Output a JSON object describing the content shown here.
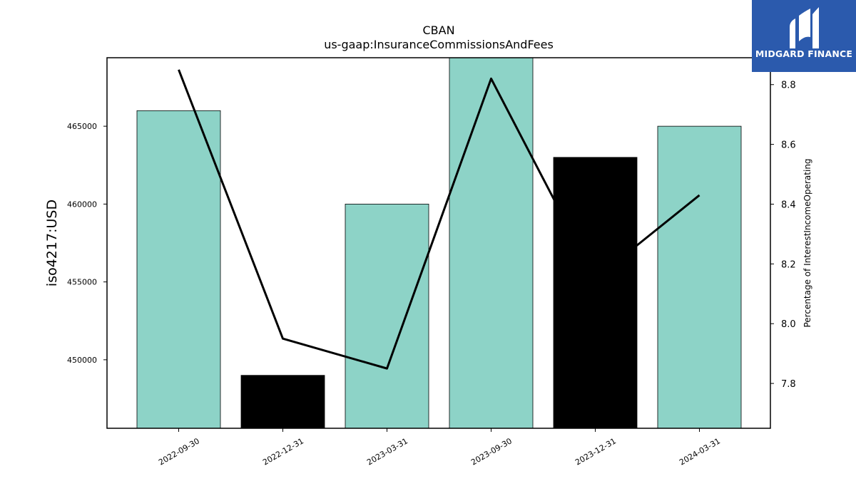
{
  "chart_data": {
    "type": "bar",
    "title": "CBAN",
    "subtitle": "us-gaap:InsuranceCommissionsAndFees",
    "ylabel": "iso4217:USD",
    "y2label": "Percentage of InterestIncomeOperating",
    "categories": [
      "2022-09-30",
      "2022-12-31",
      "2023-03-31",
      "2023-09-30",
      "2023-12-31",
      "2024-03-31"
    ],
    "values": [
      466000,
      449000,
      460000,
      470000,
      463000,
      465000
    ],
    "bar_colors": [
      "#8dd3c7",
      "#000000",
      "#8dd3c7",
      "#8dd3c7",
      "#000000",
      "#8dd3c7"
    ],
    "ylim": [
      445600,
      469400
    ],
    "yticks": [
      450000,
      455000,
      460000,
      465000
    ],
    "line": {
      "values": [
        8.85,
        7.95,
        7.85,
        8.82,
        8.15,
        8.43
      ],
      "color": "#000000"
    },
    "y2lim": [
      7.65,
      8.89
    ],
    "y2ticks": [
      "7.8",
      "8.0",
      "8.2",
      "8.4",
      "8.6",
      "8.8"
    ],
    "grid": false
  },
  "logo": {
    "text": "MIDGARD FINANCE",
    "background": "#2b5aad"
  }
}
